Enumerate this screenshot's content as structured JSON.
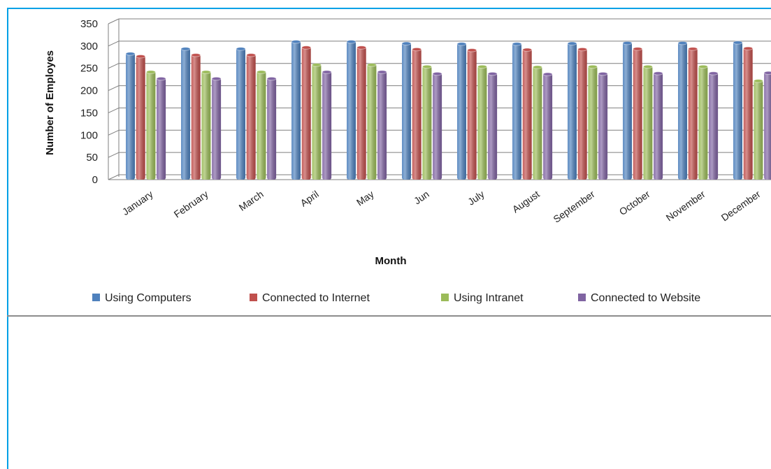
{
  "chart_data": {
    "type": "bar",
    "title": "",
    "xlabel": "Month",
    "ylabel": "Number of Employes",
    "ylim": [
      0,
      350
    ],
    "yticks": [
      0,
      50,
      100,
      150,
      200,
      250,
      300,
      350
    ],
    "grid": true,
    "legend_position": "bottom",
    "categories": [
      "January",
      "February",
      "March",
      "April",
      "May",
      "Jun",
      "July",
      "August",
      "September",
      "October",
      "November",
      "December"
    ],
    "series": [
      {
        "name": "Using Computers",
        "color": "#4f81bd",
        "values": [
          285,
          296,
          296,
          312,
          312,
          308,
          307,
          307,
          308,
          309,
          309,
          310
        ]
      },
      {
        "name": "Connected to Internet",
        "color": "#c0504d",
        "values": [
          279,
          282,
          282,
          299,
          299,
          295,
          293,
          294,
          295,
          296,
          296,
          297
        ]
      },
      {
        "name": "Using Intranet",
        "color": "#9bbb59",
        "values": [
          244,
          244,
          244,
          260,
          260,
          256,
          256,
          255,
          256,
          256,
          256,
          224
        ]
      },
      {
        "name": "Connected to Website",
        "color": "#8064a2",
        "values": [
          229,
          229,
          229,
          244,
          244,
          240,
          240,
          239,
          240,
          241,
          241,
          242
        ]
      }
    ]
  }
}
